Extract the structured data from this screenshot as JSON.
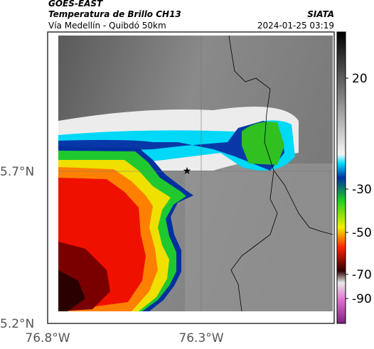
{
  "header": {
    "satellite": "GOES-EAST",
    "title": "Temperatura de Brillo CH13",
    "subtitle": "Vía Medellín - Quibdó 50km",
    "source": "SIATA",
    "timestamp": "2024-01-25 03:19"
  },
  "map": {
    "lat_labels": [
      "5.7°N",
      "5.2°N"
    ],
    "lon_labels": [
      "76.8°W",
      "76.3°W"
    ]
  },
  "colorbar": {
    "labels": [
      "20",
      "-30",
      "-50",
      "-70",
      "-90"
    ]
  }
}
